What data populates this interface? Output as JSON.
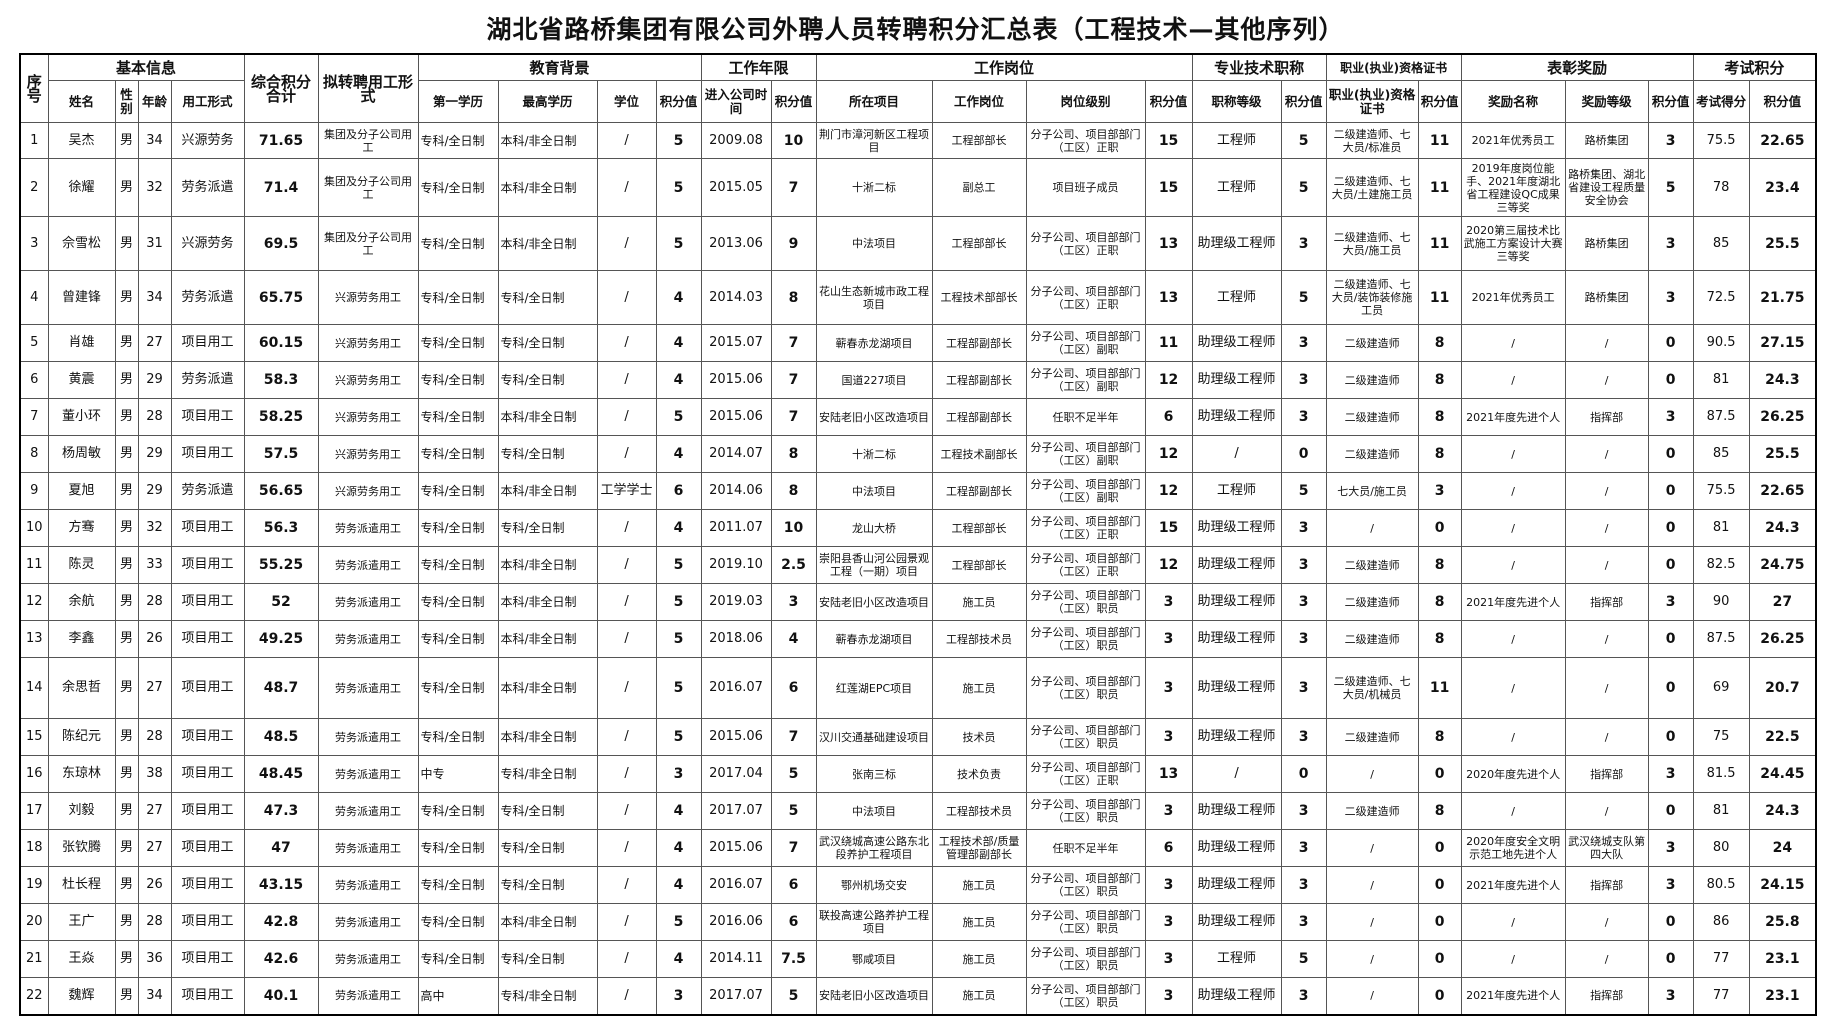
{
  "title": "湖北省路桥集团有限公司外聘人员转聘积分汇总表（工程技术—其他序列）",
  "header": {
    "groups": {
      "no": "序号",
      "basic": "基本信息",
      "total": "综合积分合计",
      "target": "拟转聘用工形式",
      "education": "教育背景",
      "years": "工作年限",
      "position": "工作岗位",
      "title": "专业技术职称",
      "cert": "职业(执业)资格证书",
      "award": "表彰奖励",
      "exam": "考试积分"
    },
    "columns": [
      "姓名",
      "性别",
      "年龄",
      "用工形式",
      "第一学历",
      "最高学历",
      "学位",
      "积分值",
      "进入公司时间",
      "积分值",
      "所在项目",
      "工作岗位",
      "岗位级别",
      "积分值",
      "职称等级",
      "积分值",
      "职业(执业)资格证书",
      "积分值",
      "奖励名称",
      "奖励等级",
      "积分值",
      "考试得分",
      "积分值"
    ]
  },
  "rows": [
    [
      "1",
      "吴杰",
      "男",
      "34",
      "兴源劳务",
      "71.65",
      "集团及分子公司用工",
      "专科/全日制",
      "本科/非全日制",
      "/",
      "5",
      "2009.08",
      "10",
      "荆门市漳河新区工程项目",
      "工程部部长",
      "分子公司、项目部部门（工区）正职",
      "15",
      "工程师",
      "5",
      "二级建造师、七大员/标准员",
      "11",
      "2021年优秀员工",
      "路桥集团",
      "3",
      "75.5",
      "22.65"
    ],
    [
      "2",
      "徐耀",
      "男",
      "32",
      "劳务派遣",
      "71.4",
      "集团及分子公司用工",
      "专科/全日制",
      "本科/非全日制",
      "/",
      "5",
      "2015.05",
      "7",
      "十淅二标",
      "副总工",
      "项目班子成员",
      "15",
      "工程师",
      "5",
      "二级建造师、七大员/土建施工员",
      "11",
      "2019年度岗位能手、2021年度湖北省工程建设QC成果三等奖",
      "路桥集团、湖北省建设工程质量安全协会",
      "5",
      "78",
      "23.4"
    ],
    [
      "3",
      "佘雪松",
      "男",
      "31",
      "兴源劳务",
      "69.5",
      "集团及分子公司用工",
      "专科/全日制",
      "本科/非全日制",
      "/",
      "5",
      "2013.06",
      "9",
      "中法项目",
      "工程部部长",
      "分子公司、项目部部门（工区）正职",
      "13",
      "助理级工程师",
      "3",
      "二级建造师、七大员/施工员",
      "11",
      "2020第三届技术比武施工方案设计大赛三等奖",
      "路桥集团",
      "3",
      "85",
      "25.5"
    ],
    [
      "4",
      "曾建锋",
      "男",
      "34",
      "劳务派遣",
      "65.75",
      "兴源劳务用工",
      "专科/全日制",
      "专科/全日制",
      "/",
      "4",
      "2014.03",
      "8",
      "花山生态新城市政工程项目",
      "工程技术部部长",
      "分子公司、项目部部门（工区）正职",
      "13",
      "工程师",
      "5",
      "二级建造师、七大员/装饰装修施工员",
      "11",
      "2021年优秀员工",
      "路桥集团",
      "3",
      "72.5",
      "21.75"
    ],
    [
      "5",
      "肖雄",
      "男",
      "27",
      "项目用工",
      "60.15",
      "兴源劳务用工",
      "专科/全日制",
      "专科/全日制",
      "/",
      "4",
      "2015.07",
      "7",
      "蕲春赤龙湖项目",
      "工程部副部长",
      "分子公司、项目部部门（工区）副职",
      "11",
      "助理级工程师",
      "3",
      "二级建造师",
      "8",
      "/",
      "/",
      "0",
      "90.5",
      "27.15"
    ],
    [
      "6",
      "黄震",
      "男",
      "29",
      "劳务派遣",
      "58.3",
      "兴源劳务用工",
      "专科/全日制",
      "专科/全日制",
      "/",
      "4",
      "2015.06",
      "7",
      "国道227项目",
      "工程部副部长",
      "分子公司、项目部部门（工区）副职",
      "12",
      "助理级工程师",
      "3",
      "二级建造师",
      "8",
      "/",
      "/",
      "0",
      "81",
      "24.3"
    ],
    [
      "7",
      "董小环",
      "男",
      "28",
      "项目用工",
      "58.25",
      "兴源劳务用工",
      "专科/全日制",
      "本科/非全日制",
      "/",
      "5",
      "2015.06",
      "7",
      "安陆老旧小区改造项目",
      "工程部副部长",
      "任职不足半年",
      "6",
      "助理级工程师",
      "3",
      "二级建造师",
      "8",
      "2021年度先进个人",
      "指挥部",
      "3",
      "87.5",
      "26.25"
    ],
    [
      "8",
      "杨周敏",
      "男",
      "29",
      "项目用工",
      "57.5",
      "兴源劳务用工",
      "专科/全日制",
      "专科/全日制",
      "/",
      "4",
      "2014.07",
      "8",
      "十淅二标",
      "工程技术副部长",
      "分子公司、项目部部门（工区）副职",
      "12",
      "/",
      "0",
      "二级建造师",
      "8",
      "/",
      "/",
      "0",
      "85",
      "25.5"
    ],
    [
      "9",
      "夏旭",
      "男",
      "29",
      "劳务派遣",
      "56.65",
      "兴源劳务用工",
      "专科/全日制",
      "本科/非全日制",
      "工学学士",
      "6",
      "2014.06",
      "8",
      "中法项目",
      "工程部副部长",
      "分子公司、项目部部门（工区）副职",
      "12",
      "工程师",
      "5",
      "七大员/施工员",
      "3",
      "/",
      "/",
      "0",
      "75.5",
      "22.65"
    ],
    [
      "10",
      "方骞",
      "男",
      "32",
      "项目用工",
      "56.3",
      "劳务派遣用工",
      "专科/全日制",
      "专科/全日制",
      "/",
      "4",
      "2011.07",
      "10",
      "龙山大桥",
      "工程部部长",
      "分子公司、项目部部门（工区）正职",
      "15",
      "助理级工程师",
      "3",
      "/",
      "0",
      "/",
      "/",
      "0",
      "81",
      "24.3"
    ],
    [
      "11",
      "陈灵",
      "男",
      "33",
      "项目用工",
      "55.25",
      "劳务派遣用工",
      "专科/全日制",
      "本科/非全日制",
      "/",
      "5",
      "2019.10",
      "2.5",
      "崇阳县香山河公园景观工程（一期）项目",
      "工程部部长",
      "分子公司、项目部部门（工区）正职",
      "12",
      "助理级工程师",
      "3",
      "二级建造师",
      "8",
      "/",
      "/",
      "0",
      "82.5",
      "24.75"
    ],
    [
      "12",
      "余航",
      "男",
      "28",
      "项目用工",
      "52",
      "劳务派遣用工",
      "专科/全日制",
      "本科/非全日制",
      "/",
      "5",
      "2019.03",
      "3",
      "安陆老旧小区改造项目",
      "施工员",
      "分子公司、项目部部门（工区）职员",
      "3",
      "助理级工程师",
      "3",
      "二级建造师",
      "8",
      "2021年度先进个人",
      "指挥部",
      "3",
      "90",
      "27"
    ],
    [
      "13",
      "李鑫",
      "男",
      "26",
      "项目用工",
      "49.25",
      "劳务派遣用工",
      "专科/全日制",
      "本科/非全日制",
      "/",
      "5",
      "2018.06",
      "4",
      "蕲春赤龙湖项目",
      "工程部技术员",
      "分子公司、项目部部门（工区）职员",
      "3",
      "助理级工程师",
      "3",
      "二级建造师",
      "8",
      "/",
      "/",
      "0",
      "87.5",
      "26.25"
    ],
    [
      "14",
      "余思哲",
      "男",
      "27",
      "项目用工",
      "48.7",
      "劳务派遣用工",
      "专科/全日制",
      "本科/非全日制",
      "/",
      "5",
      "2016.07",
      "6",
      "红莲湖EPC项目",
      "施工员",
      "分子公司、项目部部门（工区）职员",
      "3",
      "助理级工程师",
      "3",
      "二级建造师、七大员/机械员",
      "11",
      "/",
      "/",
      "0",
      "69",
      "20.7"
    ],
    [
      "15",
      "陈纪元",
      "男",
      "28",
      "项目用工",
      "48.5",
      "劳务派遣用工",
      "专科/全日制",
      "本科/非全日制",
      "/",
      "5",
      "2015.06",
      "7",
      "汉川交通基础建设项目",
      "技术员",
      "分子公司、项目部部门（工区）职员",
      "3",
      "助理级工程师",
      "3",
      "二级建造师",
      "8",
      "/",
      "/",
      "0",
      "75",
      "22.5"
    ],
    [
      "16",
      "东琼林",
      "男",
      "38",
      "项目用工",
      "48.45",
      "劳务派遣用工",
      "中专",
      "专科/非全日制",
      "/",
      "3",
      "2017.04",
      "5",
      "张南三标",
      "技术负责",
      "分子公司、项目部部门（工区）正职",
      "13",
      "/",
      "0",
      "/",
      "0",
      "2020年度先进个人",
      "指挥部",
      "3",
      "81.5",
      "24.45"
    ],
    [
      "17",
      "刘毅",
      "男",
      "27",
      "项目用工",
      "47.3",
      "劳务派遣用工",
      "专科/全日制",
      "专科/全日制",
      "/",
      "4",
      "2017.07",
      "5",
      "中法项目",
      "工程部技术员",
      "分子公司、项目部部门（工区）职员",
      "3",
      "助理级工程师",
      "3",
      "二级建造师",
      "8",
      "/",
      "/",
      "0",
      "81",
      "24.3"
    ],
    [
      "18",
      "张钦腾",
      "男",
      "27",
      "项目用工",
      "47",
      "劳务派遣用工",
      "专科/全日制",
      "专科/全日制",
      "/",
      "4",
      "2015.06",
      "7",
      "武汉绕城高速公路东北段养护工程项目",
      "工程技术部/质量管理部副部长",
      "任职不足半年",
      "6",
      "助理级工程师",
      "3",
      "/",
      "0",
      "2020年度安全文明示范工地先进个人",
      "武汉绕城支队第四大队",
      "3",
      "80",
      "24"
    ],
    [
      "19",
      "杜长程",
      "男",
      "26",
      "项目用工",
      "43.15",
      "劳务派遣用工",
      "专科/全日制",
      "专科/全日制",
      "/",
      "4",
      "2016.07",
      "6",
      "鄂州机场交安",
      "施工员",
      "分子公司、项目部部门（工区）职员",
      "3",
      "助理级工程师",
      "3",
      "/",
      "0",
      "2021年度先进个人",
      "指挥部",
      "3",
      "80.5",
      "24.15"
    ],
    [
      "20",
      "王广",
      "男",
      "28",
      "项目用工",
      "42.8",
      "劳务派遣用工",
      "专科/全日制",
      "本科/非全日制",
      "/",
      "5",
      "2016.06",
      "6",
      "联投高速公路养护工程项目",
      "施工员",
      "分子公司、项目部部门（工区）职员",
      "3",
      "助理级工程师",
      "3",
      "/",
      "0",
      "/",
      "/",
      "0",
      "86",
      "25.8"
    ],
    [
      "21",
      "王焱",
      "男",
      "36",
      "项目用工",
      "42.6",
      "劳务派遣用工",
      "专科/全日制",
      "专科/全日制",
      "/",
      "4",
      "2014.11",
      "7.5",
      "鄂咸项目",
      "施工员",
      "分子公司、项目部部门（工区）职员",
      "3",
      "工程师",
      "5",
      "/",
      "0",
      "/",
      "/",
      "0",
      "77",
      "23.1"
    ],
    [
      "22",
      "魏辉",
      "男",
      "34",
      "项目用工",
      "40.1",
      "劳务派遣用工",
      "高中",
      "专科/非全日制",
      "/",
      "3",
      "2017.07",
      "5",
      "安陆老旧小区改造项目",
      "施工员",
      "分子公司、项目部部门（工区）职员",
      "3",
      "助理级工程师",
      "3",
      "/",
      "0",
      "2021年度先进个人",
      "指挥部",
      "3",
      "77",
      "23.1"
    ]
  ]
}
